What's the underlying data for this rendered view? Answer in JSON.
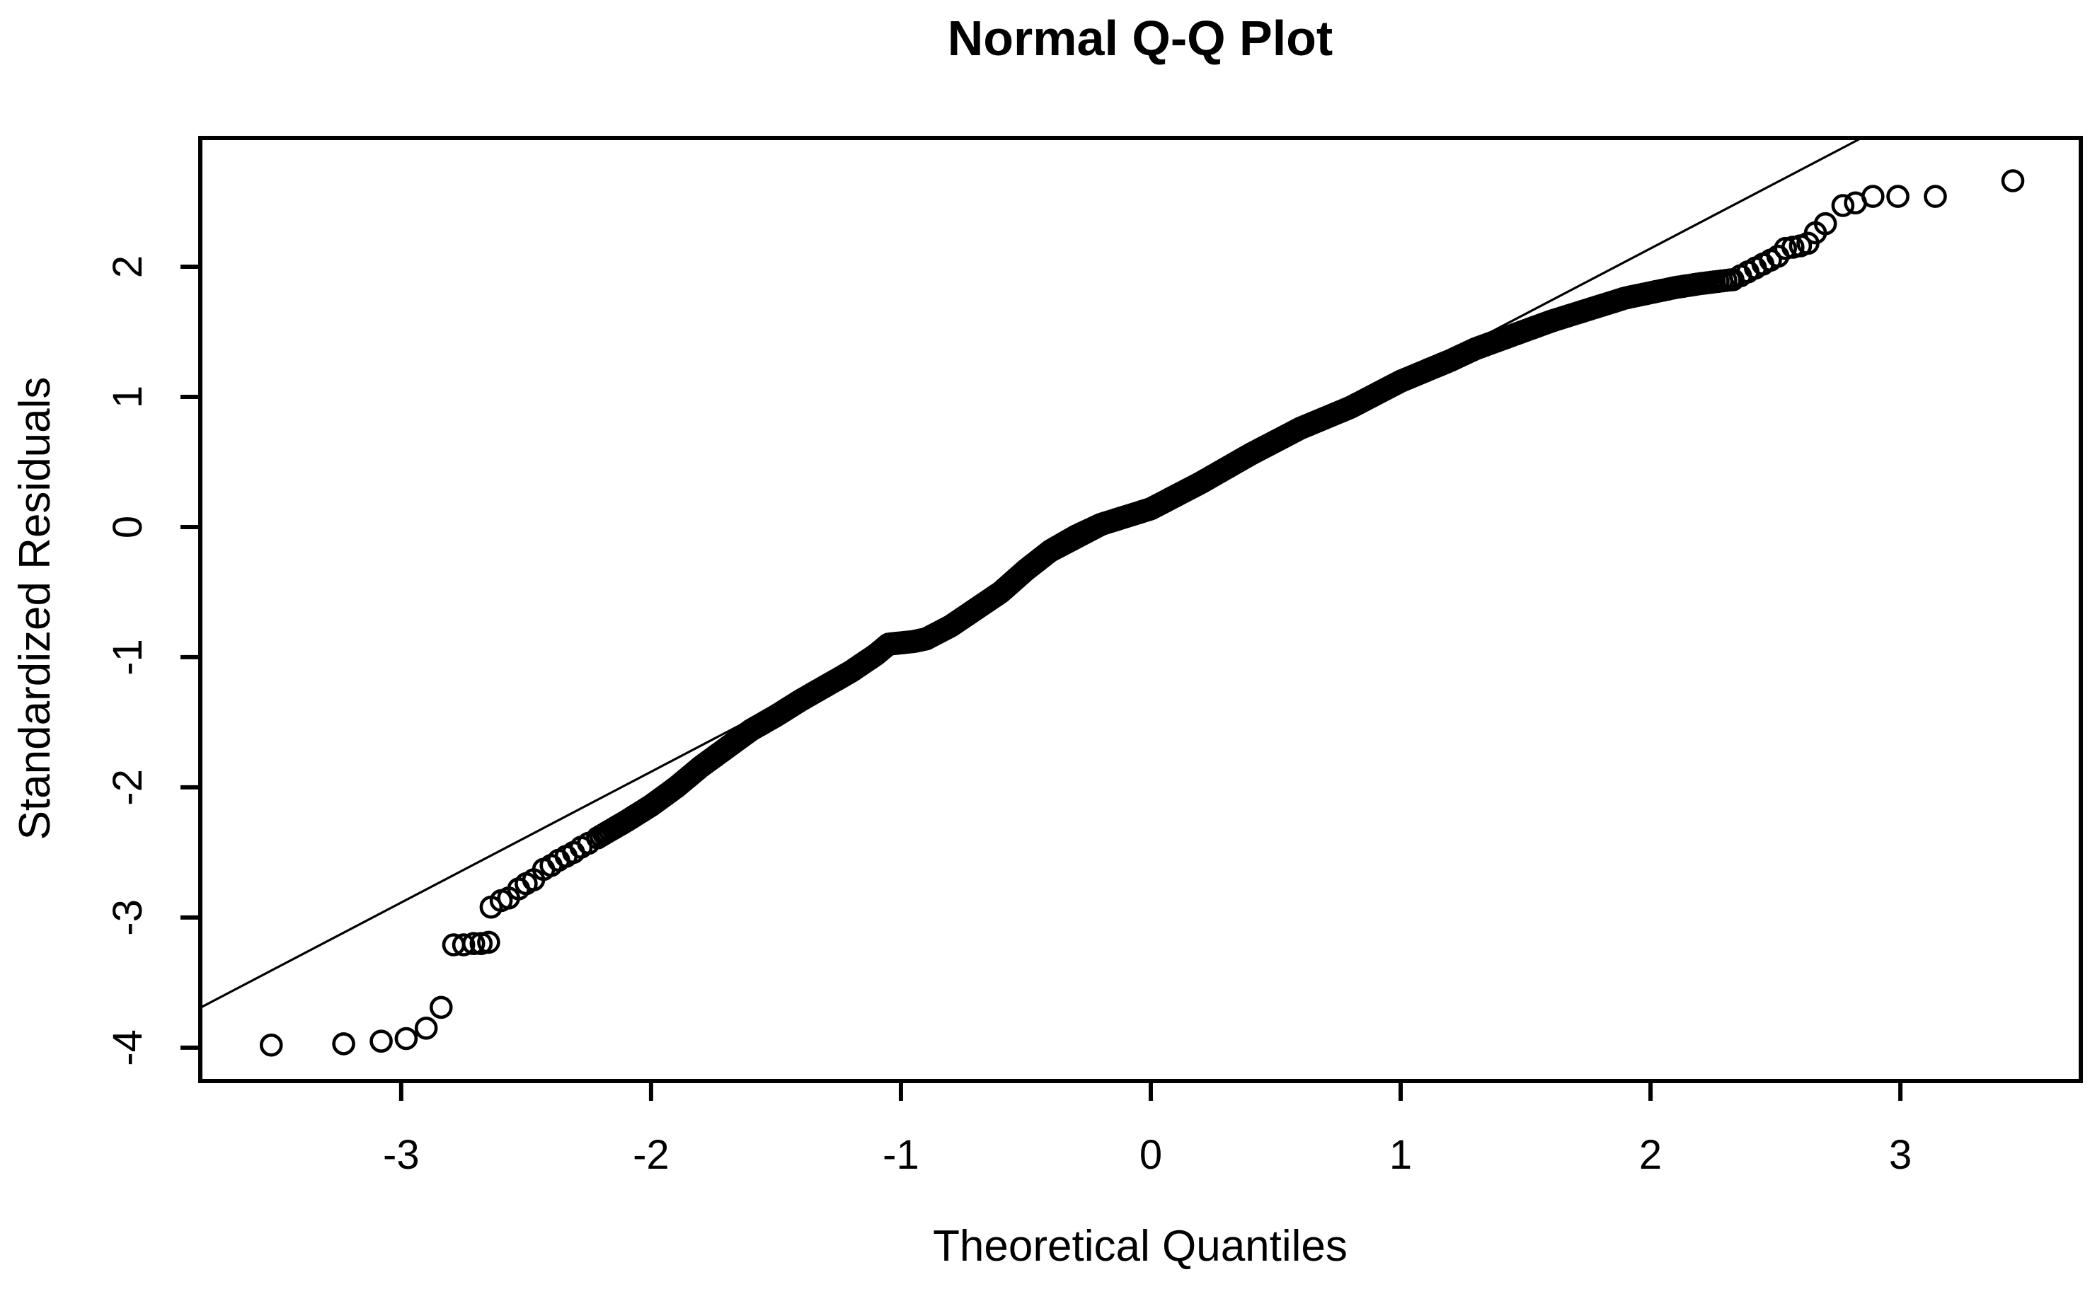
{
  "page": {
    "background": "#ffffff",
    "foreground": "#000000"
  },
  "chart_data": {
    "type": "scatter",
    "title": "Normal Q-Q Plot",
    "xlabel": "Theoretical Quantiles",
    "ylabel": "Standardized Residuals",
    "grid": false,
    "legend": null,
    "xlim": [
      -3.804,
      3.722
    ],
    "ylim": [
      -4.256,
      2.989
    ],
    "x_ticks": [
      -3,
      -2,
      -1,
      0,
      1,
      2,
      3
    ],
    "y_ticks": [
      -4,
      -3,
      -2,
      -1,
      0,
      1,
      2
    ],
    "marker": {
      "shape": "open-circle",
      "color": "#000000"
    },
    "reference_line": {
      "slope": 1.005,
      "intercept": 0.13,
      "color": "#000000"
    },
    "sample_size": 2200,
    "band": {
      "q_range": [
        -2.225,
        2.325
      ],
      "knots": [
        [
          -2.225,
          -2.4
        ],
        [
          -2.1,
          -2.26
        ],
        [
          -2.0,
          -2.14
        ],
        [
          -1.9,
          -2.0
        ],
        [
          -1.8,
          -1.84
        ],
        [
          -1.7,
          -1.7
        ],
        [
          -1.6,
          -1.56
        ],
        [
          -1.5,
          -1.45
        ],
        [
          -1.4,
          -1.33
        ],
        [
          -1.3,
          -1.22
        ],
        [
          -1.2,
          -1.11
        ],
        [
          -1.1,
          -0.98
        ],
        [
          -1.05,
          -0.9
        ],
        [
          -0.95,
          -0.88
        ],
        [
          -0.9,
          -0.86
        ],
        [
          -0.8,
          -0.76
        ],
        [
          -0.7,
          -0.63
        ],
        [
          -0.6,
          -0.5
        ],
        [
          -0.5,
          -0.33
        ],
        [
          -0.4,
          -0.18
        ],
        [
          -0.3,
          -0.07
        ],
        [
          -0.2,
          0.02
        ],
        [
          -0.1,
          0.08
        ],
        [
          0.0,
          0.14
        ],
        [
          0.1,
          0.24
        ],
        [
          0.2,
          0.34
        ],
        [
          0.3,
          0.45
        ],
        [
          0.4,
          0.56
        ],
        [
          0.5,
          0.66
        ],
        [
          0.6,
          0.76
        ],
        [
          0.7,
          0.84
        ],
        [
          0.8,
          0.92
        ],
        [
          0.9,
          1.02
        ],
        [
          1.0,
          1.12
        ],
        [
          1.1,
          1.2
        ],
        [
          1.2,
          1.28
        ],
        [
          1.3,
          1.37
        ],
        [
          1.4,
          1.44
        ],
        [
          1.5,
          1.51
        ],
        [
          1.6,
          1.58
        ],
        [
          1.7,
          1.64
        ],
        [
          1.8,
          1.7
        ],
        [
          1.9,
          1.76
        ],
        [
          2.0,
          1.8
        ],
        [
          2.1,
          1.84
        ],
        [
          2.2,
          1.87
        ],
        [
          2.325,
          1.9
        ]
      ]
    },
    "tail_points_left": [
      [
        -3.52,
        -3.98
      ],
      [
        -3.23,
        -3.97
      ],
      [
        -3.08,
        -3.95
      ],
      [
        -2.98,
        -3.93
      ],
      [
        -2.9,
        -3.85
      ],
      [
        -2.84,
        -3.69
      ],
      [
        -2.79,
        -3.21
      ],
      [
        -2.75,
        -3.21
      ],
      [
        -2.71,
        -3.2
      ],
      [
        -2.68,
        -3.2
      ],
      [
        -2.65,
        -3.19
      ],
      [
        -2.64,
        -2.92
      ],
      [
        -2.6,
        -2.87
      ],
      [
        -2.57,
        -2.85
      ],
      [
        -2.53,
        -2.78
      ],
      [
        -2.5,
        -2.74
      ],
      [
        -2.47,
        -2.71
      ],
      [
        -2.43,
        -2.63
      ],
      [
        -2.4,
        -2.6
      ],
      [
        -2.37,
        -2.56
      ],
      [
        -2.34,
        -2.53
      ],
      [
        -2.31,
        -2.5
      ],
      [
        -2.28,
        -2.46
      ],
      [
        -2.25,
        -2.43
      ]
    ],
    "tail_points_right": [
      [
        2.33,
        1.9
      ],
      [
        2.36,
        1.93
      ],
      [
        2.39,
        1.96
      ],
      [
        2.42,
        1.99
      ],
      [
        2.45,
        2.02
      ],
      [
        2.48,
        2.05
      ],
      [
        2.51,
        2.08
      ],
      [
        2.54,
        2.14
      ],
      [
        2.57,
        2.15
      ],
      [
        2.6,
        2.16
      ],
      [
        2.63,
        2.18
      ],
      [
        2.66,
        2.26
      ],
      [
        2.7,
        2.33
      ],
      [
        2.77,
        2.47
      ],
      [
        2.82,
        2.49
      ],
      [
        2.89,
        2.54
      ],
      [
        2.99,
        2.54
      ],
      [
        3.14,
        2.54
      ],
      [
        3.45,
        2.66
      ]
    ]
  }
}
